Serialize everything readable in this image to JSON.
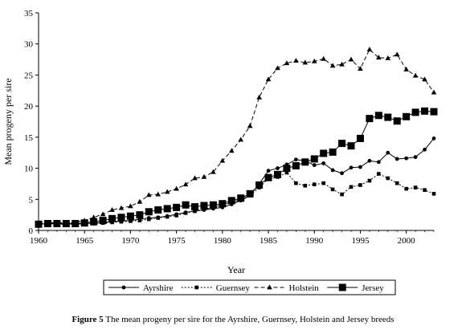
{
  "chart_data": {
    "type": "line",
    "title": "",
    "xlabel": "Year",
    "ylabel": "Mean progeny per sire",
    "xlim": [
      1960,
      2003
    ],
    "ylim": [
      0,
      35
    ],
    "x_ticks": [
      1960,
      1965,
      1970,
      1975,
      1980,
      1985,
      1990,
      1995,
      2000
    ],
    "y_ticks": [
      0,
      5,
      10,
      15,
      20,
      25,
      30,
      35
    ],
    "grid": false,
    "legend_position": "bottom",
    "x": [
      1960,
      1961,
      1962,
      1963,
      1964,
      1965,
      1966,
      1967,
      1968,
      1969,
      1970,
      1971,
      1972,
      1973,
      1974,
      1975,
      1976,
      1977,
      1978,
      1979,
      1980,
      1981,
      1982,
      1983,
      1984,
      1985,
      1986,
      1987,
      1988,
      1989,
      1990,
      1991,
      1992,
      1993,
      1994,
      1995,
      1996,
      1997,
      1998,
      1999,
      2000,
      2001,
      2002,
      2003
    ],
    "series": [
      {
        "name": "Ayrshire",
        "marker": "circle",
        "dash": "solid",
        "values": [
          1.0,
          1.1,
          1.2,
          1.1,
          1.0,
          1.1,
          1.2,
          1.3,
          1.4,
          1.5,
          1.6,
          1.8,
          2.0,
          2.1,
          2.3,
          2.6,
          2.9,
          3.1,
          3.3,
          3.5,
          3.7,
          4.2,
          4.8,
          5.6,
          7.5,
          9.6,
          10.0,
          10.6,
          11.4,
          11.2,
          10.5,
          10.8,
          9.7,
          9.2,
          10.1,
          10.2,
          11.2,
          11.0,
          12.5,
          11.5,
          11.6,
          11.8,
          13.0,
          14.8
        ]
      },
      {
        "name": "Guernsey",
        "marker": "square-small",
        "dash": "dotted",
        "values": [
          1.0,
          1.1,
          1.0,
          1.0,
          1.0,
          1.1,
          1.1,
          1.2,
          1.3,
          1.4,
          1.5,
          1.6,
          1.8,
          2.0,
          2.2,
          2.4,
          2.8,
          3.1,
          3.4,
          3.7,
          4.1,
          4.5,
          5.0,
          5.6,
          6.9,
          8.3,
          8.6,
          9.3,
          7.6,
          7.2,
          7.4,
          7.6,
          6.6,
          5.8,
          7.0,
          7.3,
          8.0,
          9.1,
          8.4,
          7.6,
          6.7,
          6.9,
          6.5,
          5.9
        ]
      },
      {
        "name": "Holstein",
        "marker": "triangle",
        "dash": "dashed",
        "values": [
          1.2,
          1.2,
          1.3,
          1.2,
          1.3,
          1.6,
          2.1,
          2.6,
          3.3,
          3.6,
          3.9,
          4.6,
          5.7,
          5.8,
          6.2,
          6.7,
          7.4,
          8.4,
          8.6,
          9.4,
          11.2,
          12.8,
          14.6,
          16.8,
          21.4,
          24.3,
          26.1,
          26.9,
          27.3,
          27.0,
          27.2,
          27.6,
          26.5,
          26.7,
          27.5,
          26.0,
          29.1,
          27.8,
          27.7,
          28.3,
          25.9,
          24.9,
          24.3,
          22.2
        ]
      },
      {
        "name": "Jersey",
        "marker": "square-large",
        "dash": "solid",
        "values": [
          1.0,
          1.1,
          1.1,
          1.1,
          1.1,
          1.2,
          1.4,
          1.6,
          1.9,
          2.1,
          2.3,
          2.5,
          3.0,
          3.3,
          3.5,
          3.7,
          4.1,
          3.8,
          4.0,
          4.1,
          4.3,
          4.8,
          5.2,
          5.9,
          7.3,
          8.5,
          9.0,
          10.0,
          10.4,
          11.0,
          11.5,
          12.4,
          12.6,
          14.0,
          13.6,
          14.8,
          18.0,
          18.5,
          18.2,
          17.6,
          18.3,
          19.0,
          19.2,
          19.1
        ]
      }
    ]
  },
  "caption": {
    "label": "Figure 5",
    "text": "The mean progeny per sire for the Ayrshire, Guernsey, Holstein and Jersey breeds"
  }
}
